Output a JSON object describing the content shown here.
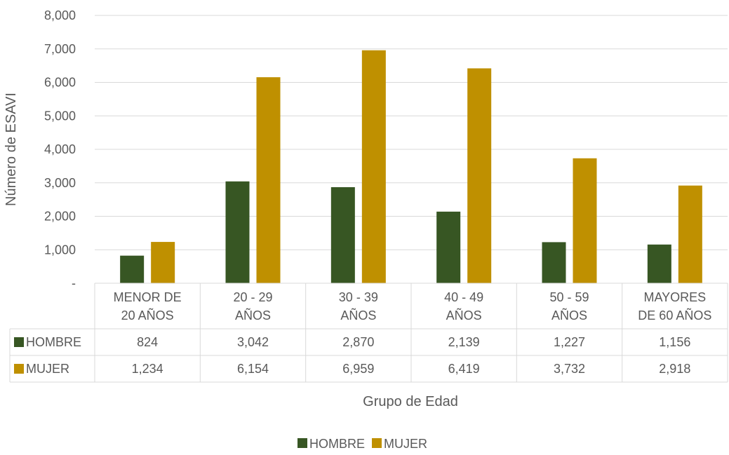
{
  "chart_data": {
    "type": "bar",
    "title": "",
    "xlabel": "Grupo de Edad",
    "ylabel": "Número de ESAVI",
    "ylim": [
      0,
      8000
    ],
    "yticks": [
      0,
      1000,
      2000,
      3000,
      4000,
      5000,
      6000,
      7000,
      8000
    ],
    "ytick_labels": [
      "-",
      "1,000",
      "2,000",
      "3,000",
      "4,000",
      "5,000",
      "6,000",
      "7,000",
      "8,000"
    ],
    "grid": true,
    "legend": "bottom",
    "data_table": true,
    "categories": [
      [
        "MENOR DE",
        "20 AÑOS"
      ],
      [
        "20 - 29",
        "AÑOS"
      ],
      [
        "30 - 39",
        "AÑOS"
      ],
      [
        "40 - 49",
        "AÑOS"
      ],
      [
        "50 - 59",
        "AÑOS"
      ],
      [
        "MAYORES",
        "DE 60 AÑOS"
      ]
    ],
    "series": [
      {
        "name": "HOMBRE",
        "color": "#375623",
        "values": [
          824,
          3042,
          2870,
          2139,
          1227,
          1156
        ],
        "labels": [
          "824",
          "3,042",
          "2,870",
          "2,139",
          "1,227",
          "1,156"
        ]
      },
      {
        "name": "MUJER",
        "color": "#BF9000",
        "values": [
          1234,
          6154,
          6959,
          6419,
          3732,
          2918
        ],
        "labels": [
          "1,234",
          "6,154",
          "6,959",
          "6,419",
          "3,732",
          "2,918"
        ]
      }
    ]
  }
}
